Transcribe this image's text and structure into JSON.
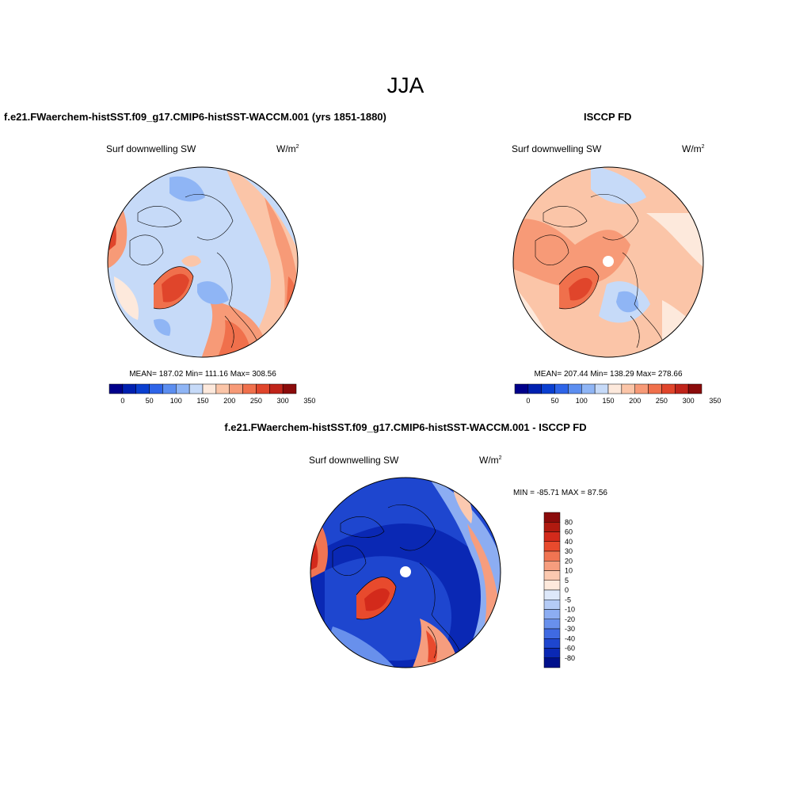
{
  "main_title": "JJA",
  "panel_model": {
    "title": "f.e21.FWaerchem-histSST.f09_g17.CMIP6-histSST-WACCM.001 (yrs 1851-1880)",
    "variable": "Surf downwelling SW",
    "units": "W/m",
    "units_sup": "2",
    "stats": "MEAN= 187.02  Min= 111.16  Max= 308.56",
    "colorbar_labels": [
      "0",
      "50",
      "100",
      "150",
      "200",
      "250",
      "300",
      "350"
    ]
  },
  "panel_obs": {
    "title": "ISCCP FD",
    "variable": "Surf downwelling SW",
    "units": "W/m",
    "units_sup": "2",
    "stats": "MEAN= 207.44  Min= 138.29  Max= 278.66",
    "colorbar_labels": [
      "0",
      "50",
      "100",
      "150",
      "200",
      "250",
      "300",
      "350"
    ]
  },
  "panel_diff": {
    "title": "f.e21.FWaerchem-histSST.f09_g17.CMIP6-histSST-WACCM.001 - ISCCP FD",
    "variable": "Surf downwelling SW",
    "units": "W/m",
    "units_sup": "2",
    "stats": "MIN = -85.71 MAX =  87.56",
    "colorbar_labels": [
      "80",
      "60",
      "40",
      "30",
      "20",
      "10",
      "5",
      "0",
      "-5",
      "-10",
      "-20",
      "-30",
      "-40",
      "-60",
      "-80"
    ]
  },
  "colors": {
    "abs_scale": [
      "#00008b",
      "#0020b0",
      "#0a3fd0",
      "#2e64e8",
      "#5c8ef0",
      "#8fb5f5",
      "#c6daf8",
      "#fde9dc",
      "#fbc5a8",
      "#f79a77",
      "#f0704c",
      "#e0452b",
      "#c0241a",
      "#8b0b0b"
    ],
    "diff_scale": [
      "#8b0b0b",
      "#b01a10",
      "#d32a1b",
      "#e84a2d",
      "#f07452",
      "#f69d7e",
      "#fbc9b0",
      "#fde9dc",
      "#dde8fa",
      "#b4cbf6",
      "#8cadf2",
      "#6890ec",
      "#3f6ae2",
      "#1e46cf",
      "#0a28b4",
      "#00108b"
    ]
  }
}
